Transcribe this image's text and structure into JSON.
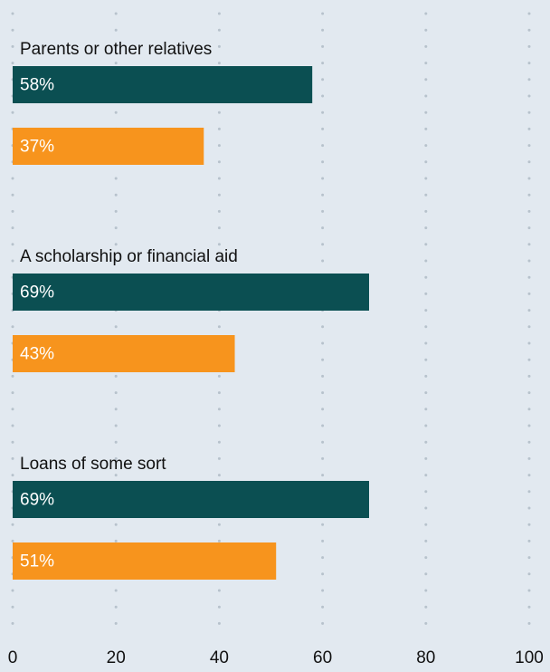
{
  "chart_data": {
    "type": "hbar",
    "categories": [
      "Parents or other relatives",
      "A scholarship or financial aid",
      "Loans of some sort"
    ],
    "series": [
      {
        "color": "#0b4f52",
        "values": [
          58,
          69,
          69
        ],
        "value_labels": [
          "58%",
          "69%",
          "69%"
        ]
      },
      {
        "color": "#f7941d",
        "values": [
          37,
          43,
          51
        ],
        "value_labels": [
          "37%",
          "43%",
          "51%"
        ]
      }
    ],
    "xlim": [
      0,
      100
    ],
    "xticks": [
      0,
      20,
      40,
      60,
      80,
      100
    ],
    "grid": true
  }
}
